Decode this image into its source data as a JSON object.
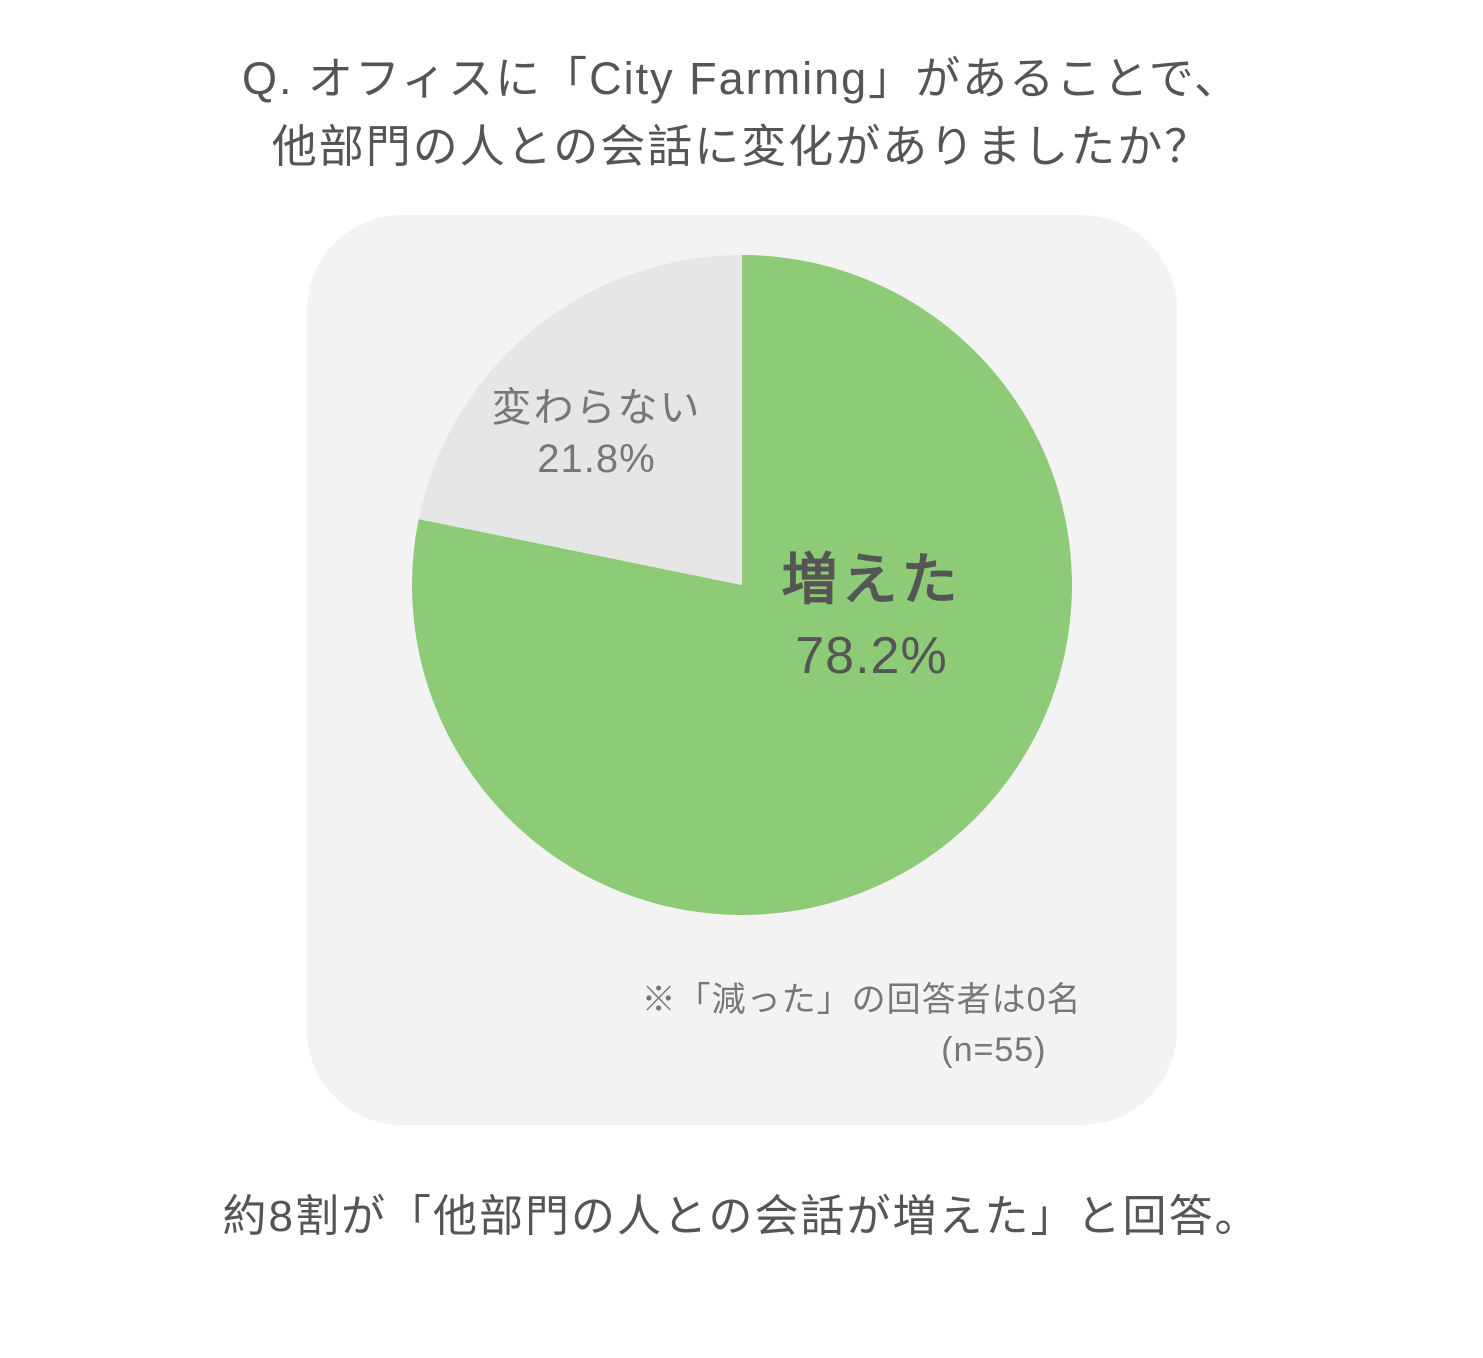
{
  "question": {
    "line1": "Q. オフィスに「City Farming」があることで、",
    "line2": "他部門の人との会話に変化がありましたか？",
    "color": "#555555",
    "fontsize": 45
  },
  "chart": {
    "type": "pie",
    "background_color": "#f3f3f3",
    "card_border_radius": 95,
    "slices": [
      {
        "label": "増えた",
        "value": 78.2,
        "pct_text": "78.2%",
        "color": "#8dcb76",
        "label_color": "#555555",
        "label_fontsize": 56,
        "label_fontweight": 700,
        "pct_fontsize": 52
      },
      {
        "label": "変わらない",
        "value": 21.8,
        "pct_text": "21.8%",
        "color": "#e6e6e6",
        "label_color": "#777777",
        "label_fontsize": 40,
        "label_fontweight": 400,
        "pct_fontsize": 40
      }
    ],
    "start_angle_deg": 0,
    "direction": "clockwise",
    "footnote": "※「減った」の回答者は0名",
    "sample_size": "(n=55)",
    "footnote_color": "#777777",
    "footnote_fontsize": 34
  },
  "summary": {
    "text": "約8割が「他部門の人との会話が増えた」と回答。",
    "color": "#555555",
    "fontsize": 44
  }
}
